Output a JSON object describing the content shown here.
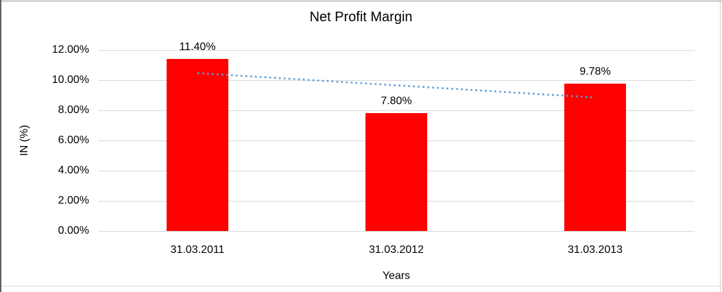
{
  "chart_data": {
    "type": "bar",
    "title": "Net Profit Margin",
    "categories": [
      "31.03.2011",
      "31.03.2012",
      "31.03.2013"
    ],
    "values": [
      11.4,
      7.8,
      9.78
    ],
    "value_labels": [
      "11.40%",
      "7.80%",
      "9.78%"
    ],
    "xlabel": "Years",
    "ylabel": "IN (%)",
    "ylim": [
      0,
      12
    ],
    "ytick_step": 2,
    "ytick_labels": [
      "0.00%",
      "2.00%",
      "4.00%",
      "6.00%",
      "8.00%",
      "10.00%",
      "12.00%"
    ],
    "grid": true,
    "legend_position": "none",
    "bar_color": "#FF0000",
    "gridline_color": "#D9D9D9",
    "text_color": "#000000",
    "trendline": {
      "type": "linear",
      "style": "dotted",
      "color": "#5B9BD5"
    }
  }
}
